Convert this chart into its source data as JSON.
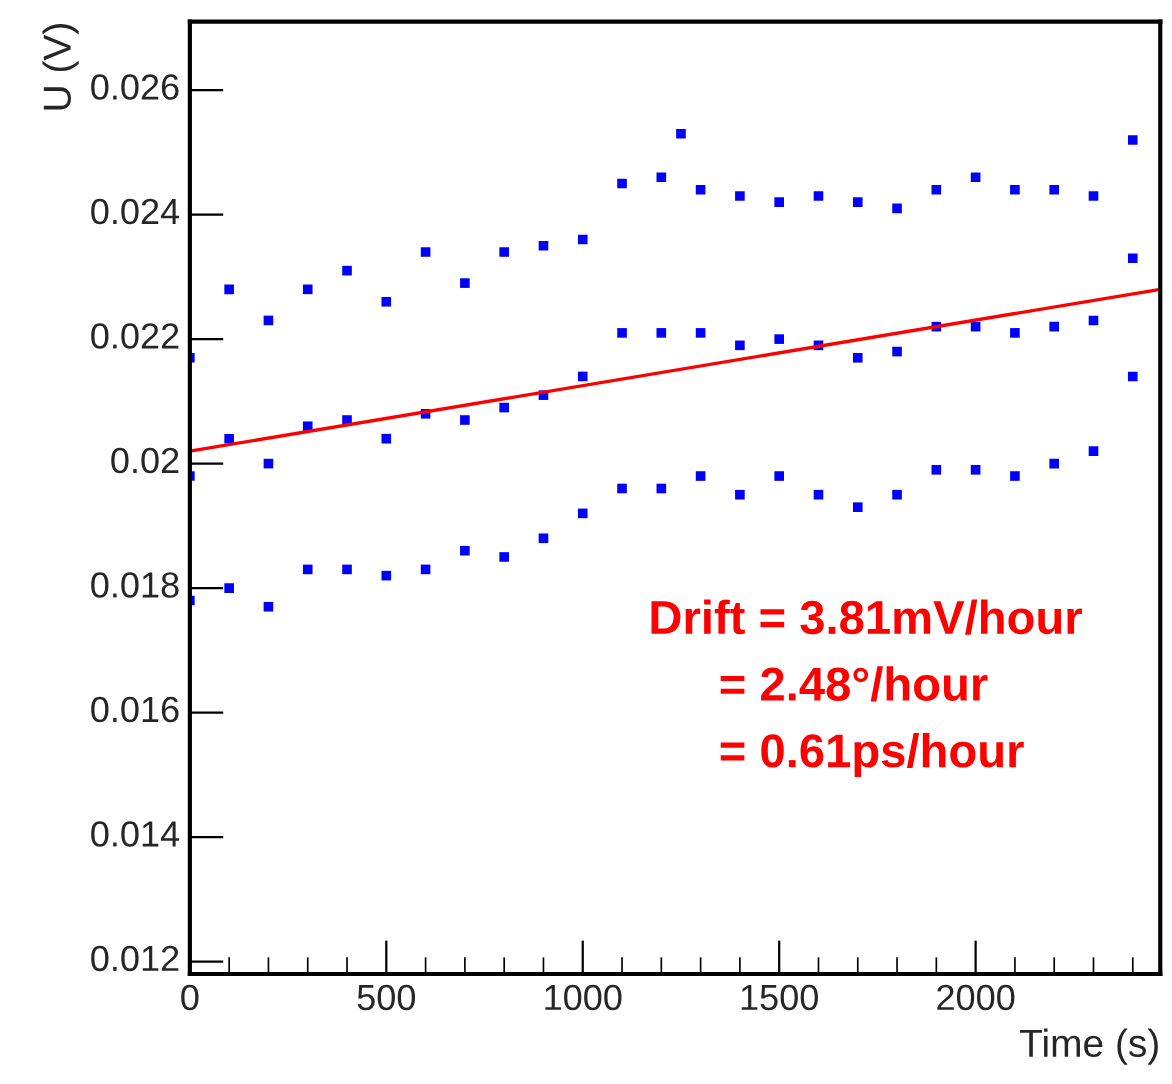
{
  "chart_data": {
    "type": "scatter",
    "xlabel": "Time (s)",
    "ylabel": "U (V)",
    "xlim": [
      0,
      2470
    ],
    "ylim": [
      0.0118,
      0.0271
    ],
    "xticks": [
      0,
      {
        "value": 100,
        "label": null
      },
      {
        "value": 200,
        "label": null
      },
      {
        "value": 300,
        "label": null
      },
      {
        "value": 400,
        "label": null
      },
      500,
      {
        "value": 600,
        "label": null
      },
      {
        "value": 700,
        "label": null
      },
      {
        "value": 800,
        "label": null
      },
      {
        "value": 900,
        "label": null
      },
      1000,
      {
        "value": 1100,
        "label": null
      },
      {
        "value": 1200,
        "label": null
      },
      {
        "value": 1300,
        "label": null
      },
      {
        "value": 1400,
        "label": null
      },
      1500,
      {
        "value": 1600,
        "label": null
      },
      {
        "value": 1700,
        "label": null
      },
      {
        "value": 1800,
        "label": null
      },
      {
        "value": 1900,
        "label": null
      },
      2000,
      {
        "value": 2100,
        "label": null
      },
      {
        "value": 2200,
        "label": null
      },
      {
        "value": 2300,
        "label": null
      },
      {
        "value": 2400,
        "label": null
      }
    ],
    "yticks": [
      {
        "value": 0.012,
        "label": "0.012"
      },
      {
        "value": 0.014,
        "label": "0.014"
      },
      {
        "value": 0.016,
        "label": "0.016"
      },
      {
        "value": 0.018,
        "label": "0.018"
      },
      {
        "value": 0.02,
        "label": "0.02"
      },
      {
        "value": 0.022,
        "label": "0.022"
      },
      {
        "value": 0.024,
        "label": "0.024"
      },
      {
        "value": 0.026,
        "label": "0.026"
      }
    ],
    "grid": false,
    "legend": false,
    "series": [
      {
        "type": "scatter",
        "marker": "square",
        "color": "#0000ff",
        "x": [
          0,
          0,
          0,
          100,
          100,
          100,
          200,
          200,
          200,
          300,
          300,
          300,
          400,
          400,
          400,
          500,
          500,
          500,
          600,
          600,
          600,
          700,
          700,
          700,
          800,
          800,
          800,
          900,
          900,
          900,
          1000,
          1000,
          1000,
          1100,
          1100,
          1100,
          1200,
          1200,
          1200,
          1250,
          1300,
          1300,
          1300,
          1400,
          1400,
          1400,
          1500,
          1500,
          1500,
          1600,
          1600,
          1600,
          1700,
          1700,
          1700,
          1800,
          1800,
          1800,
          1900,
          1900,
          1900,
          2000,
          2000,
          2000,
          2100,
          2100,
          2100,
          2200,
          2200,
          2200,
          2300,
          2300,
          2300,
          2400,
          2400,
          2400
        ],
        "values": [
          0.0217,
          0.0198,
          0.0178,
          0.0228,
          0.0204,
          0.018,
          0.0223,
          0.02,
          0.0177,
          0.0228,
          0.0206,
          0.0183,
          0.0231,
          0.0207,
          0.0183,
          0.0226,
          0.0204,
          0.0182,
          0.0234,
          0.0208,
          0.0183,
          0.0229,
          0.0207,
          0.0186,
          0.0234,
          0.0209,
          0.0185,
          0.0235,
          0.0211,
          0.0188,
          0.0236,
          0.0214,
          0.0192,
          0.0245,
          0.0221,
          0.0196,
          0.0246,
          0.0221,
          0.0196,
          0.0253,
          0.0244,
          0.0221,
          0.0198,
          0.0243,
          0.0219,
          0.0195,
          0.0242,
          0.022,
          0.0198,
          0.0243,
          0.0219,
          0.0195,
          0.0242,
          0.0217,
          0.0193,
          0.0241,
          0.0218,
          0.0195,
          0.0244,
          0.0222,
          0.0199,
          0.0246,
          0.0222,
          0.0199,
          0.0244,
          0.0221,
          0.0198,
          0.0244,
          0.0222,
          0.02,
          0.0243,
          0.0223,
          0.0202,
          0.0252,
          0.0233,
          0.0214
        ]
      },
      {
        "type": "line",
        "color": "#ff0000",
        "x": [
          0,
          2470
        ],
        "values": [
          0.0202,
          0.0228
        ],
        "line_style": "solid"
      }
    ],
    "annotations": [
      "Drift = 3.81mV/hour",
      "= 2.48°/hour",
      "= 0.61ps/hour"
    ]
  }
}
